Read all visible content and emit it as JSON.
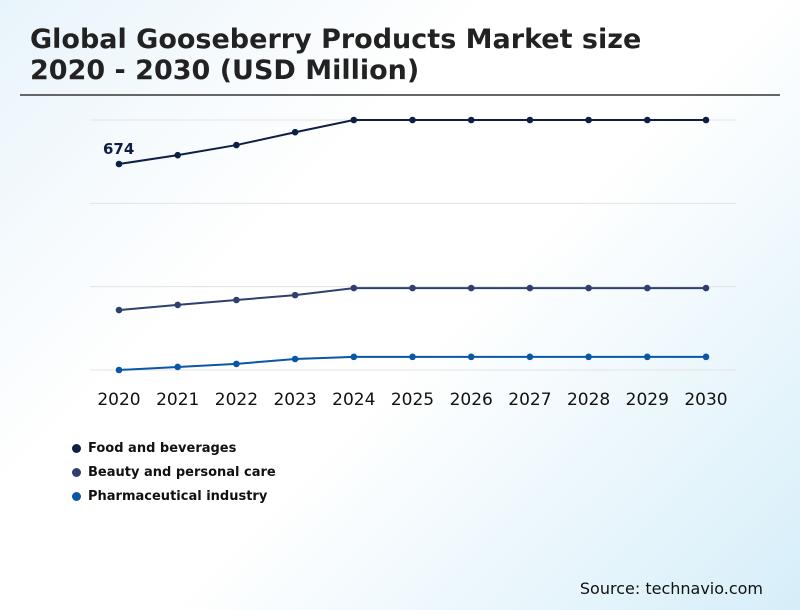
{
  "title_line1": "Global Gooseberry Products Market size",
  "title_line2": "2020 - 2030 (USD Million)",
  "source": "Source: technavio.com",
  "chart_data": {
    "type": "line",
    "categories": [
      "2020",
      "2021",
      "2022",
      "2023",
      "2024",
      "2025",
      "2026",
      "2027",
      "2028",
      "2029",
      "2030"
    ],
    "ylim": [
      0,
      818
    ],
    "grid": true,
    "legend_position": "bottom-left",
    "series": [
      {
        "name": "Food and beverages",
        "color": "#0d1f45",
        "values": [
          674,
          703,
          736,
          778,
          818,
          818,
          818,
          818,
          818,
          818,
          818
        ]
      },
      {
        "name": "Beauty and personal care",
        "color": "#2e3f70",
        "values": [
          196,
          213,
          229,
          245,
          268,
          268,
          268,
          268,
          268,
          268,
          268
        ]
      },
      {
        "name": "Pharmaceutical industry",
        "color": "#0a57a5",
        "values": [
          0,
          10,
          20,
          36,
          43,
          43,
          43,
          43,
          43,
          43,
          43
        ]
      }
    ],
    "annotations": [
      {
        "series": 0,
        "category": "2020",
        "text": "674"
      }
    ]
  }
}
